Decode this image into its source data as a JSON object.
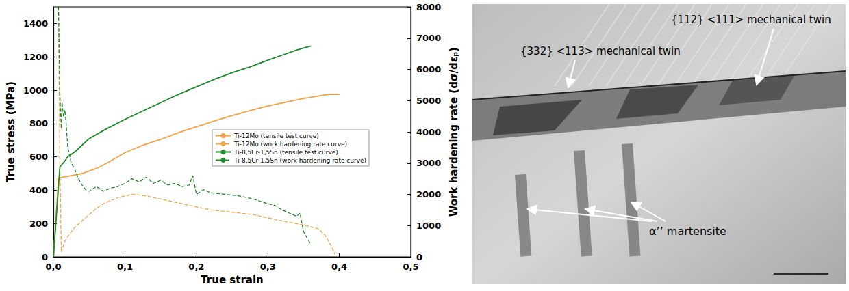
{
  "chart_data": {
    "type": "line",
    "xlabel": "True strain",
    "ylabel": "True stress (MPa)",
    "y2label": "Work hardening rate (dσ/dεₚ)",
    "xlim": [
      0,
      0.5
    ],
    "xticks": [
      {
        "value": 0,
        "label": "0,0"
      },
      {
        "value": 0.1,
        "label": "0,1"
      },
      {
        "value": 0.2,
        "label": "0,2"
      },
      {
        "value": 0.3,
        "label": "0,3"
      },
      {
        "value": 0.4,
        "label": "0,4"
      },
      {
        "value": 0.5,
        "label": "0,5"
      }
    ],
    "ylim": [
      0,
      1500
    ],
    "yticks": [
      0,
      200,
      400,
      600,
      800,
      1000,
      1200,
      1400
    ],
    "y2lim": [
      0,
      8000
    ],
    "y2ticks": [
      0,
      1000,
      2000,
      3000,
      4000,
      5000,
      6000,
      7000,
      8000
    ],
    "grid": false,
    "legend": "center",
    "series": [
      {
        "name": "Ti-12Mo (tensile test curve)",
        "color": "#f4a245",
        "line_style": "solid",
        "axis": "y",
        "x": [
          0,
          0.007,
          0.012,
          0.02,
          0.04,
          0.06,
          0.08,
          0.1,
          0.125,
          0.15,
          0.175,
          0.2,
          0.225,
          0.25,
          0.275,
          0.3,
          0.325,
          0.35,
          0.37,
          0.385,
          0.4
        ],
        "values": [
          0,
          470,
          478,
          483,
          500,
          530,
          575,
          625,
          670,
          705,
          745,
          780,
          815,
          848,
          878,
          905,
          928,
          950,
          965,
          975,
          975
        ]
      },
      {
        "name": "Ti-12Mo (work hardening rate curve)",
        "color": "#f4a245",
        "line_style": "dashed",
        "axis": "y2",
        "x": [
          0.007,
          0.009,
          0.011,
          0.013,
          0.016,
          0.02,
          0.03,
          0.04,
          0.05,
          0.06,
          0.07,
          0.08,
          0.09,
          0.1,
          0.11,
          0.12,
          0.13,
          0.14,
          0.16,
          0.18,
          0.2,
          0.22,
          0.25,
          0.28,
          0.3,
          0.32,
          0.35,
          0.37,
          0.38,
          0.39,
          0.395
        ],
        "values": [
          8000,
          3000,
          150,
          300,
          500,
          650,
          950,
          1150,
          1350,
          1550,
          1700,
          1800,
          1900,
          1950,
          2000,
          1980,
          1950,
          1900,
          1800,
          1700,
          1600,
          1500,
          1430,
          1350,
          1250,
          1150,
          1020,
          900,
          700,
          300,
          0
        ]
      },
      {
        "name": "Ti-8,5Cr-1,5Sn (tensile test curve)",
        "color": "#1f8a2a",
        "line_style": "solid",
        "axis": "y",
        "x": [
          0,
          0.009,
          0.015,
          0.02,
          0.03,
          0.04,
          0.05,
          0.075,
          0.1,
          0.125,
          0.15,
          0.175,
          0.2,
          0.225,
          0.25,
          0.275,
          0.3,
          0.32,
          0.34,
          0.36
        ],
        "values": [
          0,
          540,
          570,
          600,
          630,
          670,
          710,
          770,
          825,
          875,
          925,
          975,
          1020,
          1065,
          1105,
          1140,
          1180,
          1210,
          1240,
          1265
        ]
      },
      {
        "name": "Ti-8,5Cr-1,5Sn (work hardening rate curve)",
        "color": "#1f8a2a",
        "line_style": "dashed",
        "axis": "y2",
        "x": [
          0.007,
          0.009,
          0.011,
          0.012,
          0.014,
          0.016,
          0.018,
          0.02,
          0.025,
          0.03,
          0.035,
          0.04,
          0.045,
          0.05,
          0.06,
          0.07,
          0.08,
          0.09,
          0.1,
          0.11,
          0.12,
          0.13,
          0.14,
          0.15,
          0.16,
          0.17,
          0.18,
          0.19,
          0.195,
          0.2,
          0.21,
          0.22,
          0.24,
          0.26,
          0.28,
          0.3,
          0.31,
          0.32,
          0.33,
          0.34,
          0.345,
          0.35,
          0.355,
          0.36
        ],
        "values": [
          8000,
          5200,
          4100,
          4950,
          4500,
          4700,
          4200,
          3500,
          3000,
          2800,
          2500,
          2300,
          2150,
          2100,
          2250,
          2100,
          2200,
          2250,
          2350,
          2500,
          2400,
          2550,
          2350,
          2450,
          2300,
          2350,
          2250,
          2300,
          2600,
          2000,
          2150,
          2050,
          2000,
          1950,
          1850,
          1700,
          1650,
          1500,
          1400,
          1300,
          1400,
          800,
          600,
          400
        ]
      }
    ]
  },
  "micrograph": {
    "labels": [
      {
        "text": "{112} <111> mechanical twin"
      },
      {
        "text": "{332} <113> mechanical twin"
      },
      {
        "text": "α’’ martensite"
      }
    ]
  }
}
